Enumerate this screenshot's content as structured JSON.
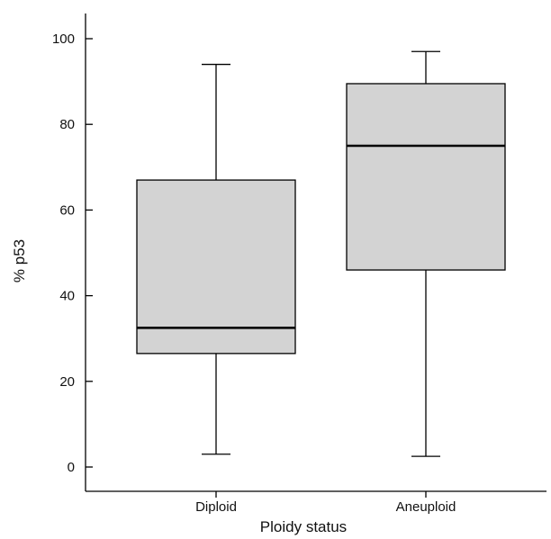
{
  "chart_data": {
    "type": "box",
    "xlabel": "Ploidy status",
    "ylabel": "% p53",
    "ylim": [
      -5,
      105
    ],
    "yticks": [
      0,
      20,
      40,
      60,
      80,
      100
    ],
    "grid": false,
    "box_fill_color": "#d3d3d3",
    "categories": [
      "Diploid",
      "Aneuploid"
    ],
    "boxes": [
      {
        "category": "Diploid",
        "min": 3,
        "q1": 26.5,
        "median": 32.5,
        "q3": 67,
        "max": 94
      },
      {
        "category": "Aneuploid",
        "min": 2.5,
        "q1": 46,
        "median": 75,
        "q3": 89.5,
        "max": 97
      }
    ]
  }
}
